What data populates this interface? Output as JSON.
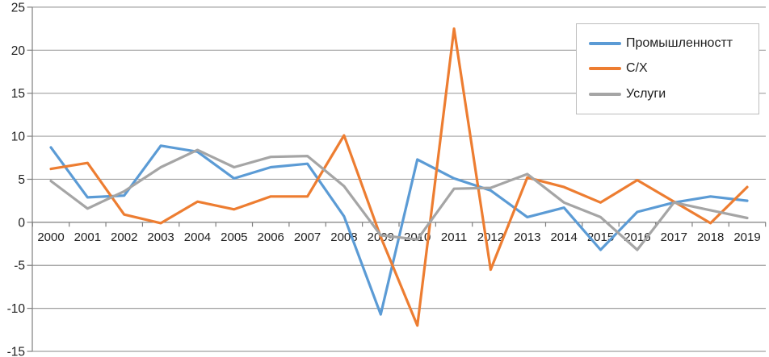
{
  "chart_data": {
    "type": "line",
    "title": "",
    "xlabel": "",
    "ylabel": "",
    "categories": [
      "2000",
      "2001",
      "2002",
      "2003",
      "2004",
      "2005",
      "2006",
      "2007",
      "2008",
      "2009",
      "2010",
      "2011",
      "2012",
      "2013",
      "2014",
      "2015",
      "2016",
      "2017",
      "2018",
      "2019"
    ],
    "series": [
      {
        "name": "Промышленностт",
        "color": "#5B9BD5",
        "values": [
          8.7,
          2.9,
          3.1,
          8.9,
          8.2,
          5.1,
          6.4,
          6.8,
          0.7,
          -10.7,
          7.3,
          5.1,
          3.7,
          0.6,
          1.7,
          -3.2,
          1.2,
          2.3,
          3.0,
          2.5
        ]
      },
      {
        "name": "С/Х",
        "color": "#ED7D31",
        "values": [
          6.2,
          6.9,
          0.9,
          -0.1,
          2.4,
          1.5,
          3.0,
          3.0,
          10.1,
          -1.7,
          -12.0,
          22.5,
          -5.5,
          5.2,
          4.1,
          2.3,
          4.9,
          2.4,
          -0.1,
          4.1
        ]
      },
      {
        "name": "Услуги",
        "color": "#A5A5A5",
        "values": [
          4.8,
          1.6,
          3.6,
          6.4,
          8.4,
          6.4,
          7.6,
          7.7,
          4.2,
          -1.5,
          -2.0,
          3.9,
          4.0,
          5.6,
          2.3,
          0.6,
          -3.2,
          2.3,
          1.4,
          0.5
        ]
      }
    ],
    "ylim": [
      -15,
      25
    ],
    "yticks": [
      25,
      20,
      15,
      10,
      5,
      0,
      -5,
      -10,
      -15
    ],
    "grid": "horizontal",
    "legend_position": "top-right",
    "colors": {
      "gridline": "#a0a0a0",
      "axis": "#7f7f7f",
      "tick_label": "#1f1f1f"
    }
  }
}
